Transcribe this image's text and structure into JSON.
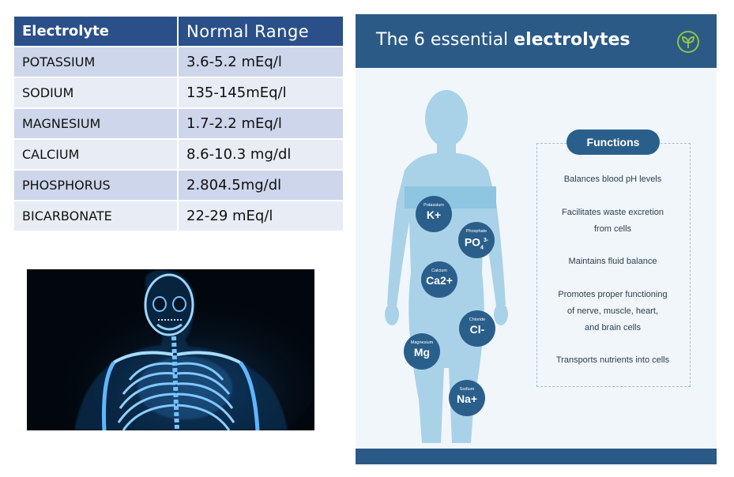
{
  "table": {
    "header": {
      "col1": "Electrolyte",
      "col2": "Normal Range"
    },
    "rows": [
      {
        "name": "POTASSIUM",
        "range": "3.6-5.2 mEq/l"
      },
      {
        "name": "SODIUM",
        "range": "135-145mEq/l"
      },
      {
        "name": "MAGNESIUM",
        "range": "1.7-2.2 mEq/l"
      },
      {
        "name": "CALCIUM",
        "range": "8.6-10.3 mg/dl"
      },
      {
        "name": "PHOSPHORUS",
        "range": "2.804.5mg/dl"
      },
      {
        "name": "BICARBONATE",
        "range": "22-29 mEq/l"
      }
    ]
  },
  "infographic": {
    "title_prefix": "The 6 essential",
    "title_bold": "electrolytes",
    "icon": "leaf-icon",
    "electrolytes": [
      {
        "name": "Potassium",
        "symbol": "K+"
      },
      {
        "name": "Phosphate",
        "symbol": "PO",
        "sub": "4",
        "sup": "3-"
      },
      {
        "name": "Calcium",
        "symbol": "Ca2+"
      },
      {
        "name": "Chloride",
        "symbol": "Cl-"
      },
      {
        "name": "Magnesium",
        "symbol": "Mg"
      },
      {
        "name": "Sodium",
        "symbol": "Na+"
      }
    ],
    "functions_label": "Functions",
    "functions": [
      "Balances blood pH levels",
      "Facilitates waste excretion\nfrom cells",
      "Maintains fluid balance",
      "Promotes proper functioning\nof nerve, muscle, heart,\nand brain cells",
      "Transports nutrients into cells"
    ]
  },
  "colors": {
    "table_header": "#2b4f88",
    "table_row_odd": "#cdd6ea",
    "table_row_even": "#e8ecf5",
    "info_header": "#2b5a87",
    "bubble": "#2a5f8b",
    "body_silhouette": "#a9d2e8",
    "xray_glow": "#5fb6ff"
  }
}
